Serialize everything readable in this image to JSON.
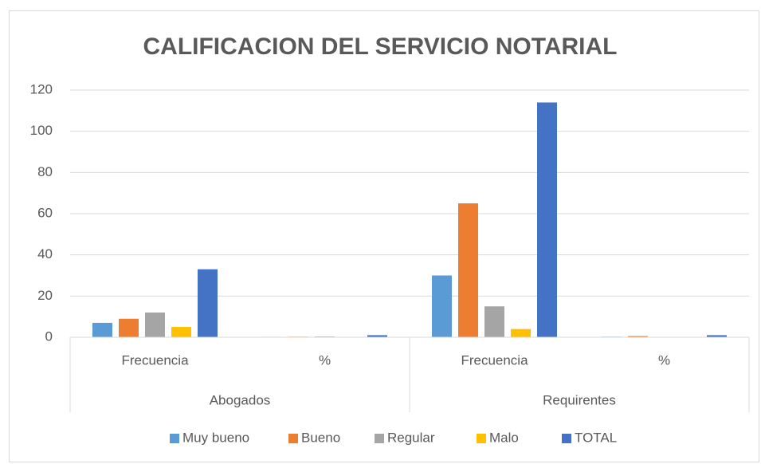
{
  "chart_data": {
    "type": "bar",
    "title": "CALIFICACION DEL SERVICIO NOTARIAL",
    "categories": [
      "Frecuencia",
      "%",
      "Frecuencia",
      "%"
    ],
    "groups": [
      "Abogados",
      "Requirentes"
    ],
    "series": [
      {
        "name": "Muy bueno",
        "color": "#5b9bd5",
        "values": [
          7,
          0.21,
          30,
          0.26
        ]
      },
      {
        "name": "Bueno",
        "color": "#ed7d31",
        "values": [
          9,
          0.27,
          65,
          0.57
        ]
      },
      {
        "name": "Regular",
        "color": "#a5a5a5",
        "values": [
          12,
          0.36,
          15,
          0.13
        ]
      },
      {
        "name": "Malo",
        "color": "#ffc000",
        "values": [
          5,
          0.15,
          4,
          0.04
        ]
      },
      {
        "name": "TOTAL",
        "color": "#4472c4",
        "values": [
          33,
          1,
          114,
          1
        ]
      }
    ],
    "ylim": [
      0,
      120
    ],
    "yticks": [
      0,
      20,
      40,
      60,
      80,
      100,
      120
    ],
    "grid": true,
    "legend": "bottom"
  }
}
